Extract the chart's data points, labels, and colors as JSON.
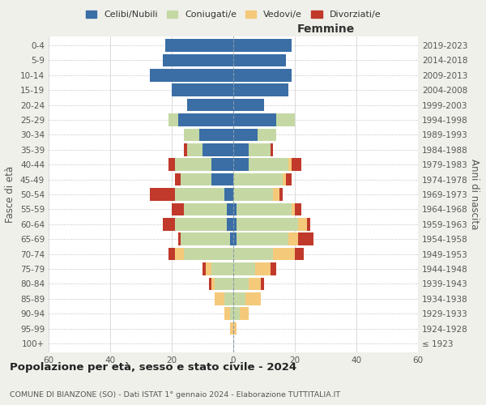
{
  "age_groups": [
    "100+",
    "95-99",
    "90-94",
    "85-89",
    "80-84",
    "75-79",
    "70-74",
    "65-69",
    "60-64",
    "55-59",
    "50-54",
    "45-49",
    "40-44",
    "35-39",
    "30-34",
    "25-29",
    "20-24",
    "15-19",
    "10-14",
    "5-9",
    "0-4"
  ],
  "birth_years": [
    "≤ 1923",
    "1924-1928",
    "1929-1933",
    "1934-1938",
    "1939-1943",
    "1944-1948",
    "1949-1953",
    "1954-1958",
    "1959-1963",
    "1964-1968",
    "1969-1973",
    "1974-1978",
    "1979-1983",
    "1984-1988",
    "1989-1993",
    "1994-1998",
    "1999-2003",
    "2004-2008",
    "2009-2013",
    "2014-2018",
    "2019-2023"
  ],
  "male": {
    "celibi": [
      0,
      0,
      0,
      0,
      0,
      0,
      0,
      1,
      2,
      2,
      3,
      7,
      7,
      10,
      11,
      18,
      15,
      20,
      27,
      23,
      22
    ],
    "coniugati": [
      0,
      0,
      1,
      3,
      6,
      7,
      16,
      16,
      17,
      14,
      16,
      10,
      12,
      5,
      5,
      3,
      0,
      0,
      0,
      0,
      0
    ],
    "vedovi": [
      0,
      1,
      2,
      3,
      1,
      2,
      3,
      0,
      0,
      0,
      0,
      0,
      0,
      0,
      0,
      0,
      0,
      0,
      0,
      0,
      0
    ],
    "divorziati": [
      0,
      0,
      0,
      0,
      1,
      1,
      2,
      1,
      4,
      4,
      8,
      2,
      2,
      1,
      0,
      0,
      0,
      0,
      0,
      0,
      0
    ]
  },
  "female": {
    "nubili": [
      0,
      0,
      0,
      0,
      0,
      0,
      0,
      1,
      1,
      1,
      0,
      0,
      5,
      5,
      8,
      14,
      10,
      18,
      19,
      17,
      19
    ],
    "coniugate": [
      0,
      0,
      2,
      4,
      5,
      7,
      13,
      17,
      20,
      18,
      13,
      16,
      13,
      7,
      6,
      6,
      0,
      0,
      0,
      0,
      0
    ],
    "vedove": [
      0,
      1,
      3,
      5,
      4,
      5,
      7,
      3,
      3,
      1,
      2,
      1,
      1,
      0,
      0,
      0,
      0,
      0,
      0,
      0,
      0
    ],
    "divorziate": [
      0,
      0,
      0,
      0,
      1,
      2,
      3,
      5,
      1,
      2,
      1,
      2,
      3,
      1,
      0,
      0,
      0,
      0,
      0,
      0,
      0
    ]
  },
  "colors": {
    "celibi": "#3a6ea5",
    "coniugati": "#c5d8a4",
    "vedovi": "#f5c97a",
    "divorziati": "#c0392b"
  },
  "xlim": 60,
  "title": "Popolazione per età, sesso e stato civile - 2024",
  "subtitle": "COMUNE DI BIANZONE (SO) - Dati ISTAT 1° gennaio 2024 - Elaborazione TUTTITALIA.IT",
  "ylabel_left": "Fasce di età",
  "ylabel_right": "Anni di nascita",
  "xlabel_right": "Femmine",
  "bg_color": "#f0f0eb",
  "plot_bg": "#ffffff"
}
